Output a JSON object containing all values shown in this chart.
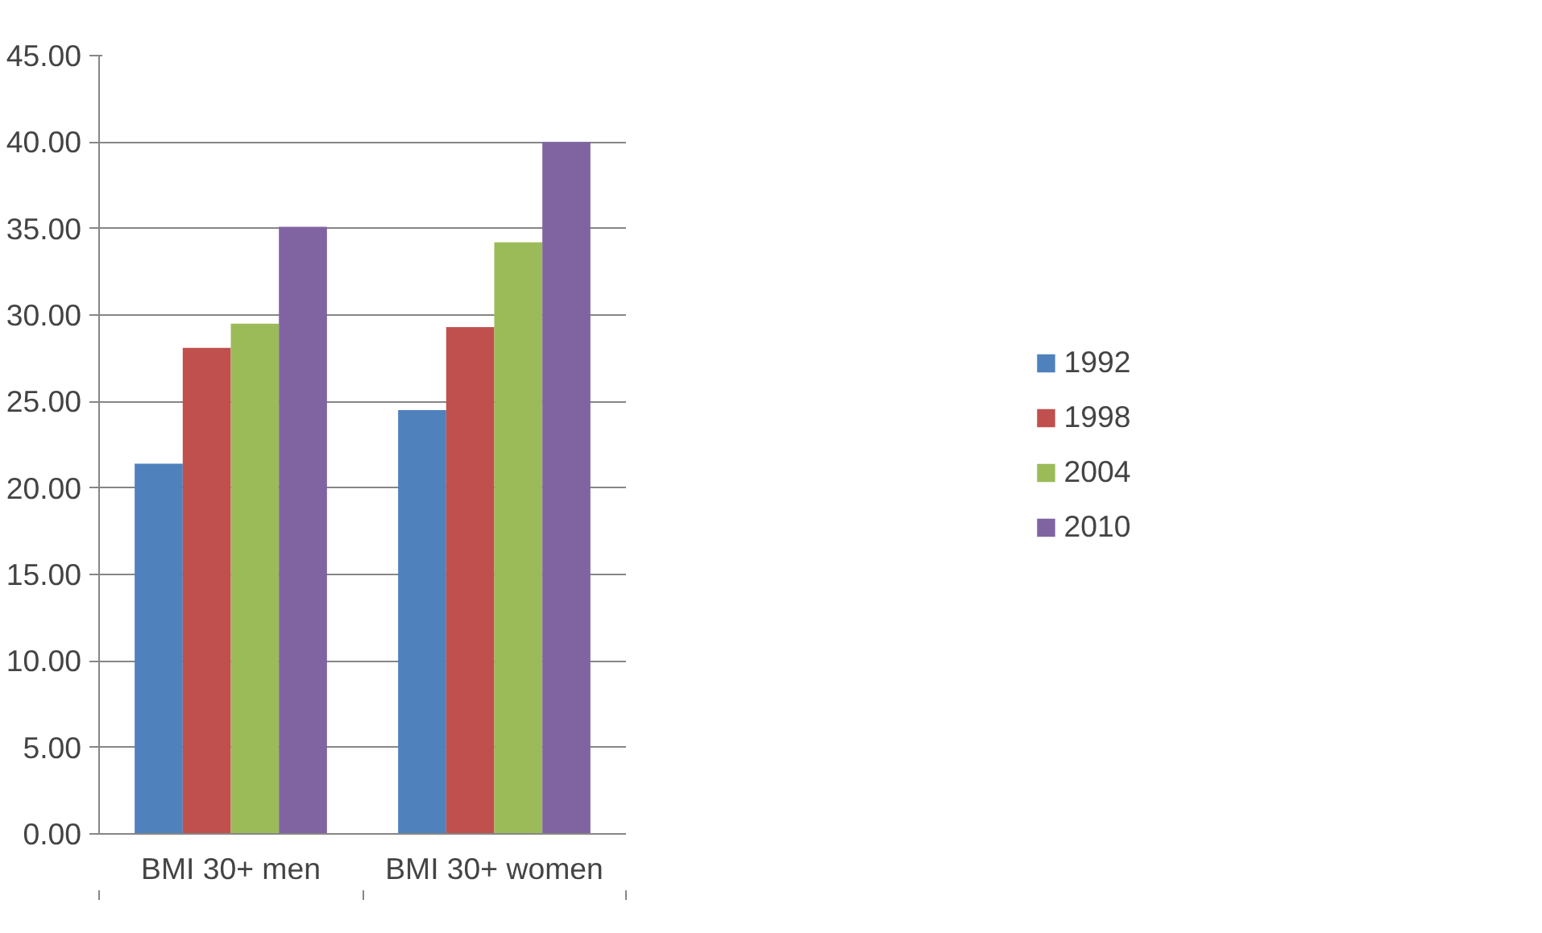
{
  "chart_data": {
    "type": "bar",
    "categories": [
      "BMI 30+ men",
      "BMI 30+ women"
    ],
    "series": [
      {
        "name": "1992",
        "color": "#4f81bd",
        "values": [
          21.4,
          24.5
        ]
      },
      {
        "name": "1998",
        "color": "#c0504d",
        "values": [
          28.1,
          29.3
        ]
      },
      {
        "name": "2004",
        "color": "#9bbb59",
        "values": [
          29.5,
          34.2
        ]
      },
      {
        "name": "2010",
        "color": "#8064a2",
        "values": [
          35.1,
          40.0
        ]
      }
    ],
    "ylim": [
      0,
      45
    ],
    "yticks": [
      {
        "value": 0,
        "label": "0.00"
      },
      {
        "value": 5,
        "label": "5.00"
      },
      {
        "value": 10,
        "label": "10.00"
      },
      {
        "value": 15,
        "label": "15.00"
      },
      {
        "value": 20,
        "label": "20.00"
      },
      {
        "value": 25,
        "label": "25.00"
      },
      {
        "value": 30,
        "label": "30.00"
      },
      {
        "value": 35,
        "label": "35.00"
      },
      {
        "value": 40,
        "label": "40.00"
      },
      {
        "value": 45,
        "label": "45.00"
      }
    ],
    "grid": "y",
    "legend": "right"
  }
}
